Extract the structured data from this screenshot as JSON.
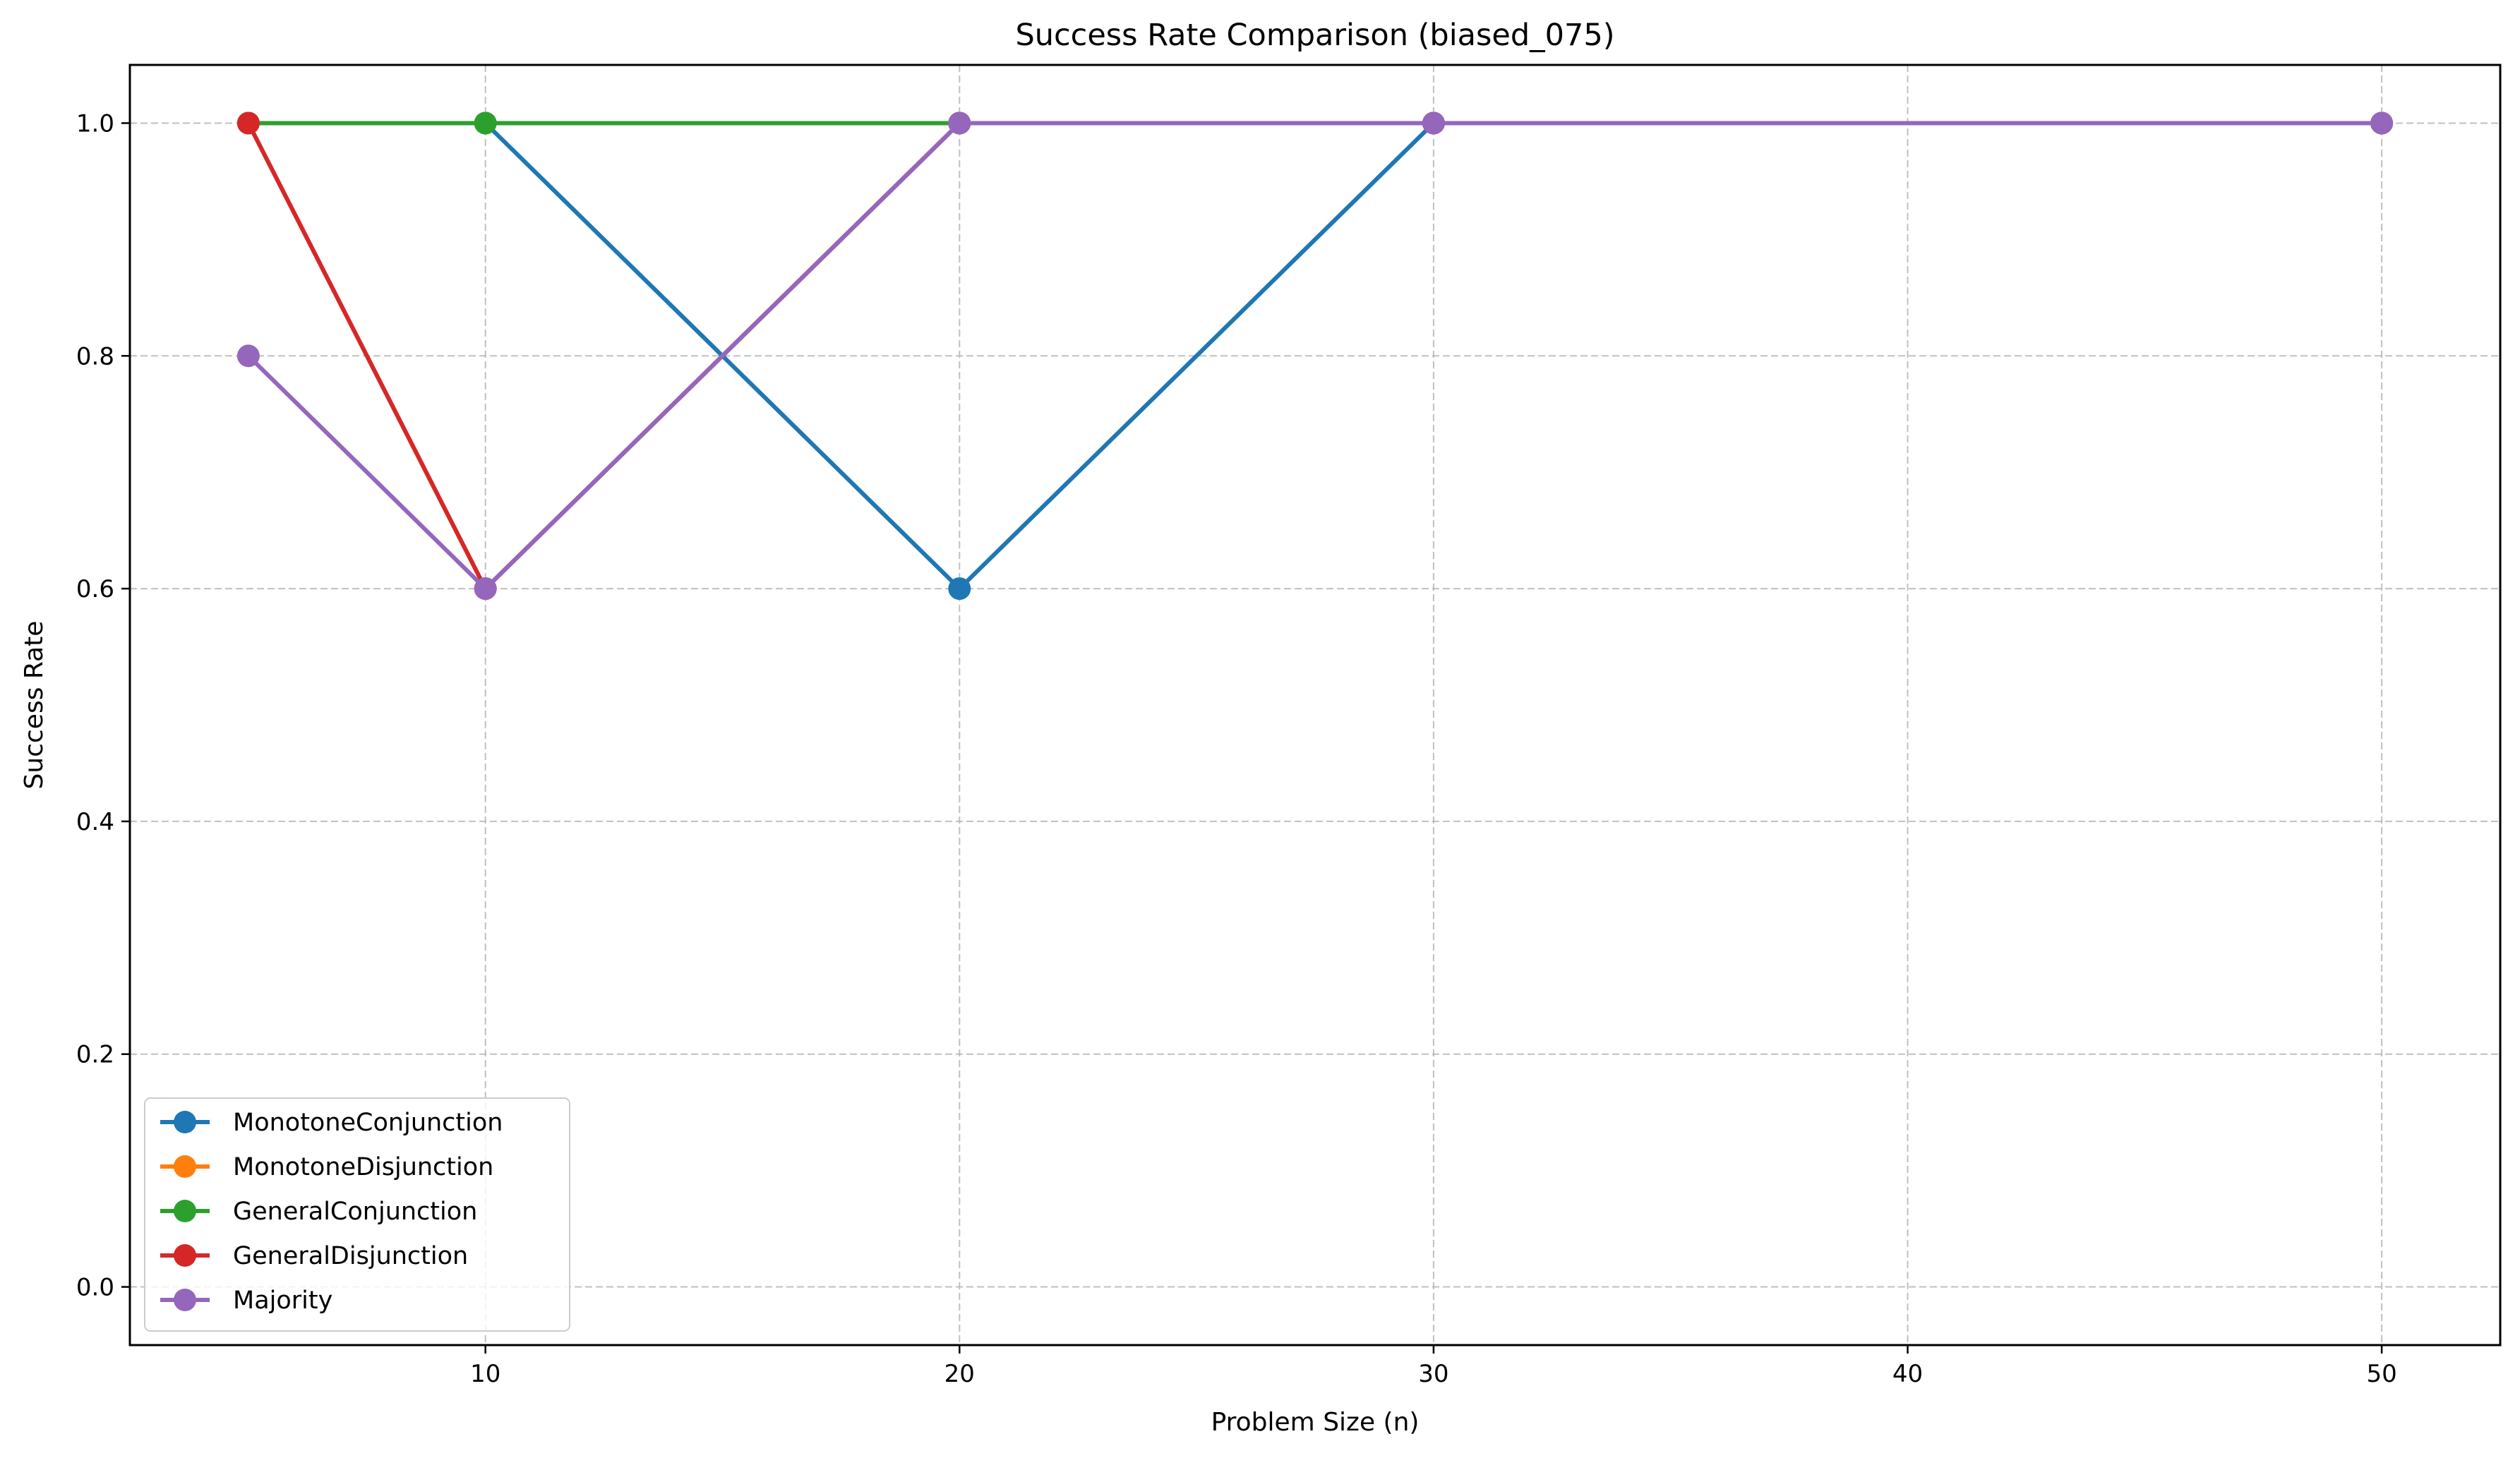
{
  "chart_data": {
    "type": "line",
    "title": "Success Rate Comparison (biased_075)",
    "xlabel": "Problem Size (n)",
    "ylabel": "Success Rate",
    "xlim": [
      2.5,
      52.5
    ],
    "ylim": [
      -0.05,
      1.05
    ],
    "xticks": [
      10,
      20,
      30,
      40,
      50
    ],
    "yticks": [
      0.0,
      0.2,
      0.4,
      0.6,
      0.8,
      1.0
    ],
    "xtick_labels": [
      "10",
      "20",
      "30",
      "40",
      "50"
    ],
    "ytick_labels": [
      "0.0",
      "0.2",
      "0.4",
      "0.6",
      "0.8",
      "1.0"
    ],
    "grid": true,
    "legend_position": "lower-left",
    "x": [
      5,
      10,
      20,
      30,
      50
    ],
    "series": [
      {
        "name": "MonotoneConjunction",
        "color": "#1f77b4",
        "values": [
          1.0,
          1.0,
          0.6,
          1.0,
          1.0
        ]
      },
      {
        "name": "MonotoneDisjunction",
        "color": "#ff7f0e",
        "values": [
          1.0,
          0.6,
          1.0,
          1.0,
          1.0
        ]
      },
      {
        "name": "GeneralConjunction",
        "color": "#2ca02c",
        "values": [
          1.0,
          1.0,
          1.0,
          1.0,
          1.0
        ]
      },
      {
        "name": "GeneralDisjunction",
        "color": "#d62728",
        "values": [
          1.0,
          0.6,
          1.0,
          1.0,
          1.0
        ]
      },
      {
        "name": "Majority",
        "color": "#9467bd",
        "values": [
          0.8,
          0.6,
          1.0,
          1.0,
          1.0
        ]
      }
    ]
  }
}
